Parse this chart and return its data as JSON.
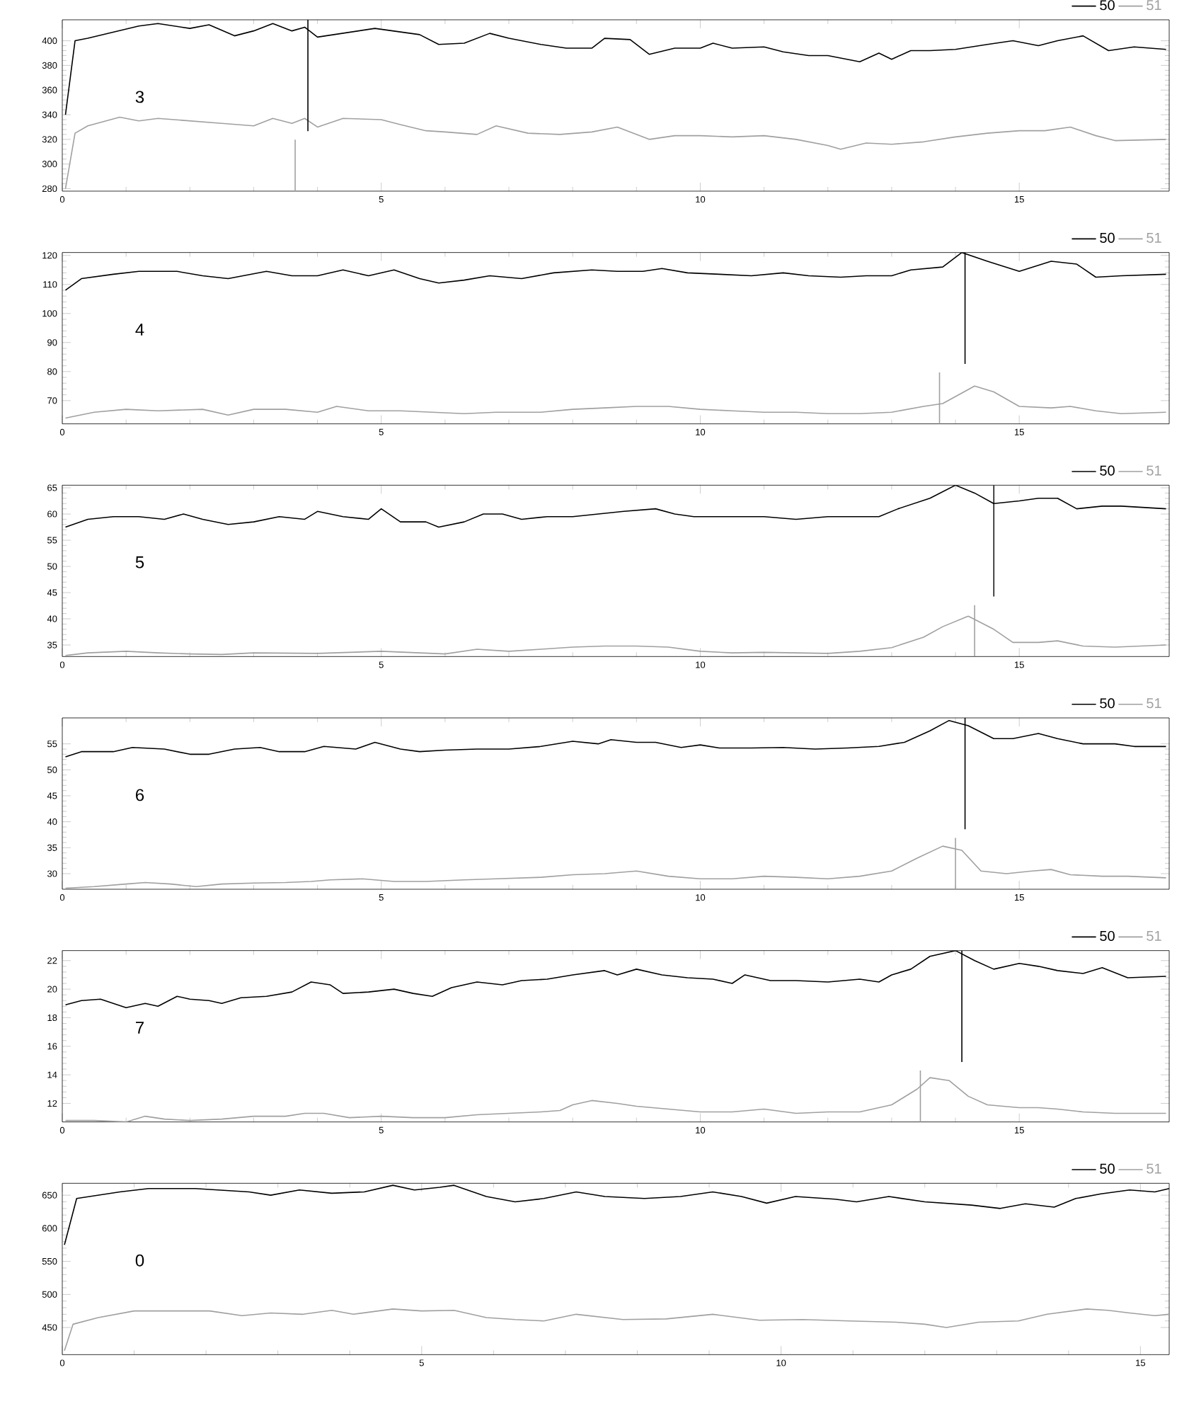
{
  "chart_data": [
    {
      "type": "line",
      "xlim": [
        0,
        17.35
      ],
      "xticks": [
        0,
        5,
        10,
        15
      ],
      "ylim": [
        278,
        417
      ],
      "yticks": [
        280,
        300,
        320,
        340,
        360,
        380,
        400
      ],
      "legend": "top right",
      "annotations": [
        "3"
      ],
      "ref_lines": [
        {
          "axis": "x",
          "value": 3.85,
          "color": "#000000"
        },
        {
          "axis": "x",
          "value": 3.65,
          "color": "#a0a0a0"
        }
      ],
      "series": [
        {
          "name": "50",
          "color": "#000000",
          "x": [
            0.05,
            0.2,
            0.4,
            0.9,
            1.2,
            1.5,
            2.0,
            2.3,
            2.7,
            3.0,
            3.3,
            3.6,
            3.8,
            4.0,
            4.4,
            4.9,
            5.3,
            5.6,
            5.9,
            6.3,
            6.7,
            7.0,
            7.5,
            7.9,
            8.3,
            8.5,
            8.9,
            9.2,
            9.6,
            10.0,
            10.2,
            10.5,
            11.0,
            11.3,
            11.7,
            12.0,
            12.5,
            12.8,
            13.0,
            13.3,
            13.6,
            14.0,
            14.5,
            14.9,
            15.3,
            15.6,
            16.0,
            16.4,
            16.8,
            17.3
          ],
          "values": [
            340,
            400,
            402,
            null,
            412,
            414,
            410,
            413,
            404,
            408,
            414,
            408,
            411,
            403,
            null,
            410,
            null,
            405,
            397,
            398,
            406,
            402,
            397,
            394,
            394,
            402,
            401,
            389,
            394,
            394,
            398,
            394,
            395,
            391,
            388,
            388,
            383,
            390,
            385,
            392,
            392,
            393,
            397,
            400,
            396,
            400,
            404,
            392,
            395,
            393
          ]
        },
        {
          "name": "51",
          "color": "#a0a0a0",
          "x": [
            0.05,
            0.2,
            0.4,
            0.9,
            1.2,
            1.5,
            2.0,
            2.5,
            3.0,
            3.3,
            3.6,
            3.8,
            4.0,
            4.4,
            5.0,
            5.3,
            5.7,
            6.0,
            6.5,
            6.8,
            7.3,
            7.8,
            8.3,
            8.7,
            9.2,
            9.6,
            10.0,
            10.5,
            11.0,
            11.5,
            12.0,
            12.2,
            12.6,
            13.0,
            13.5,
            14.0,
            14.5,
            15.0,
            15.4,
            15.8,
            16.2,
            16.5,
            17.3
          ],
          "values": [
            280,
            325,
            331,
            338,
            335,
            337,
            335,
            333,
            331,
            337,
            333,
            337,
            330,
            337,
            336,
            332,
            327,
            326,
            324,
            331,
            325,
            324,
            326,
            330,
            320,
            323,
            323,
            322,
            323,
            320,
            315,
            312,
            317,
            316,
            318,
            322,
            325,
            327,
            327,
            330,
            323,
            319,
            320
          ]
        }
      ]
    },
    {
      "type": "line",
      "xlim": [
        0,
        17.35
      ],
      "xticks": [
        0,
        5,
        10,
        15
      ],
      "ylim": [
        62,
        121
      ],
      "yticks": [
        70,
        80,
        90,
        100,
        110,
        120
      ],
      "legend": "top right",
      "annotations": [
        "4"
      ],
      "ref_lines": [
        {
          "axis": "x",
          "value": 14.15,
          "color": "#000000"
        },
        {
          "axis": "x",
          "value": 13.75,
          "color": "#a0a0a0"
        }
      ],
      "series": [
        {
          "name": "50",
          "color": "#000000",
          "x": [
            0.05,
            0.3,
            0.8,
            1.2,
            1.8,
            2.2,
            2.6,
            3.2,
            3.6,
            4.0,
            4.4,
            4.8,
            5.2,
            5.6,
            5.9,
            6.3,
            6.7,
            7.2,
            7.7,
            8.3,
            8.7,
            9.1,
            9.4,
            9.8,
            10.3,
            10.8,
            11.3,
            11.7,
            12.2,
            12.6,
            13.0,
            13.3,
            13.8,
            14.1,
            14.5,
            15.0,
            15.5,
            15.9,
            16.2,
            16.6,
            17.3
          ],
          "values": [
            108,
            112,
            113.5,
            114.5,
            114.5,
            113,
            112,
            114.5,
            113,
            113,
            115,
            113,
            115,
            112,
            110.5,
            111.5,
            113,
            112,
            114,
            115,
            114.5,
            114.5,
            115.5,
            114,
            113.5,
            113,
            114,
            113,
            112.5,
            113,
            113,
            115,
            116,
            121,
            118,
            114.5,
            118,
            117,
            112.5,
            113,
            113.5
          ]
        },
        {
          "name": "51",
          "color": "#a0a0a0",
          "x": [
            0.05,
            0.5,
            1.0,
            1.5,
            2.2,
            2.6,
            3.0,
            3.5,
            4.0,
            4.3,
            4.8,
            5.3,
            5.8,
            6.3,
            6.8,
            7.5,
            8.0,
            8.5,
            9.0,
            9.5,
            10.0,
            10.5,
            11.0,
            11.5,
            12.0,
            12.5,
            13.0,
            13.5,
            13.8,
            14.3,
            14.6,
            15.0,
            15.5,
            15.8,
            16.2,
            16.6,
            17.3
          ],
          "values": [
            64,
            66,
            67,
            66.5,
            67,
            65,
            67,
            67,
            66,
            68,
            66.5,
            66.5,
            66,
            65.5,
            66,
            66,
            67,
            67.5,
            68,
            68,
            67,
            66.5,
            66,
            66,
            65.5,
            65.5,
            66,
            68,
            69,
            75,
            73,
            68,
            67.5,
            68,
            66.5,
            65.5,
            66
          ]
        }
      ]
    },
    {
      "type": "line",
      "xlim": [
        0,
        17.35
      ],
      "xticks": [
        0,
        5,
        10,
        15
      ],
      "ylim": [
        32.8,
        65.5
      ],
      "yticks": [
        35,
        40,
        45,
        50,
        55,
        60,
        65
      ],
      "legend": "top right",
      "annotations": [
        "5"
      ],
      "ref_lines": [
        {
          "axis": "x",
          "value": 14.6,
          "color": "#000000"
        },
        {
          "axis": "x",
          "value": 14.3,
          "color": "#a0a0a0"
        }
      ],
      "series": [
        {
          "name": "50",
          "color": "#000000",
          "x": [
            0.05,
            0.4,
            0.8,
            1.2,
            1.6,
            1.9,
            2.2,
            2.6,
            3.0,
            3.4,
            3.8,
            4.0,
            4.4,
            4.8,
            5.0,
            5.3,
            5.7,
            5.9,
            6.3,
            6.6,
            6.9,
            7.2,
            7.6,
            8.0,
            8.4,
            8.8,
            9.3,
            9.6,
            9.9,
            10.2,
            10.6,
            11.0,
            11.5,
            12.0,
            12.4,
            12.8,
            13.1,
            13.6,
            14.0,
            14.3,
            14.6,
            15.0,
            15.3,
            15.6,
            15.9,
            16.3,
            16.6,
            17.3
          ],
          "values": [
            57.5,
            59,
            59.5,
            59.5,
            59,
            60,
            59,
            58,
            58.5,
            59.5,
            59,
            60.5,
            59.5,
            59,
            61,
            58.5,
            58.5,
            57.5,
            58.5,
            60,
            60,
            59,
            59.5,
            59.5,
            60,
            60.5,
            61,
            60,
            59.5,
            59.5,
            59.5,
            59.5,
            59,
            59.5,
            59.5,
            59.5,
            61,
            63,
            65.5,
            64,
            62,
            62.5,
            63,
            63,
            61,
            61.5,
            61.5,
            61
          ]
        },
        {
          "name": "51",
          "color": "#a0a0a0",
          "x": [
            0.05,
            0.4,
            1.0,
            1.5,
            2.0,
            2.5,
            3.0,
            4.0,
            5.0,
            6.0,
            6.5,
            7.0,
            7.5,
            8.0,
            8.5,
            9.0,
            9.5,
            10.0,
            10.5,
            11.0,
            11.5,
            12.0,
            12.5,
            13.0,
            13.5,
            13.8,
            14.2,
            14.6,
            14.9,
            15.3,
            15.6,
            16.0,
            16.5,
            17.3
          ],
          "values": [
            33,
            33.5,
            33.8,
            33.5,
            33.3,
            33.2,
            33.5,
            33.4,
            33.8,
            33.3,
            34.2,
            33.8,
            34.2,
            34.6,
            34.8,
            34.8,
            34.6,
            33.8,
            33.5,
            33.6,
            33.5,
            33.4,
            33.8,
            34.5,
            36.5,
            38.5,
            40.5,
            38,
            35.5,
            35.5,
            35.8,
            34.8,
            34.6,
            35
          ]
        }
      ]
    },
    {
      "type": "line",
      "xlim": [
        0,
        17.35
      ],
      "xticks": [
        0,
        5,
        10,
        15
      ],
      "ylim": [
        27,
        60
      ],
      "yticks": [
        30,
        35,
        40,
        45,
        50,
        55
      ],
      "legend": "top right",
      "annotations": [
        "6"
      ],
      "ref_lines": [
        {
          "axis": "x",
          "value": 14.15,
          "color": "#000000"
        },
        {
          "axis": "x",
          "value": 14.0,
          "color": "#a0a0a0"
        }
      ],
      "series": [
        {
          "name": "50",
          "color": "#000000",
          "x": [
            0.05,
            0.3,
            0.8,
            1.1,
            1.6,
            2.0,
            2.3,
            2.7,
            3.1,
            3.4,
            3.8,
            4.1,
            4.6,
            4.9,
            5.3,
            5.6,
            6.0,
            6.5,
            7.0,
            7.5,
            8.0,
            8.4,
            8.6,
            9.0,
            9.3,
            9.7,
            10.0,
            10.3,
            10.8,
            11.3,
            11.8,
            12.3,
            12.8,
            13.2,
            13.6,
            13.9,
            14.2,
            14.6,
            14.9,
            15.3,
            15.6,
            16.0,
            16.5,
            16.8,
            17.3
          ],
          "values": [
            52.5,
            53.5,
            53.5,
            54.3,
            54,
            53,
            53,
            54,
            54.3,
            53.5,
            53.5,
            54.5,
            54,
            55.3,
            54,
            53.5,
            53.8,
            54,
            54,
            54.5,
            55.5,
            55,
            55.8,
            55.3,
            55.3,
            54.3,
            54.8,
            54.2,
            54.2,
            54.3,
            54,
            54.2,
            54.5,
            55.3,
            57.5,
            59.5,
            58.5,
            56,
            56,
            57,
            56,
            55,
            55,
            54.5,
            54.5
          ]
        },
        {
          "name": "51",
          "color": "#a0a0a0",
          "x": [
            0.05,
            0.5,
            1.0,
            1.3,
            1.7,
            2.1,
            2.5,
            3.0,
            3.5,
            3.9,
            4.2,
            4.7,
            5.2,
            5.7,
            6.3,
            6.8,
            7.5,
            8.0,
            8.5,
            9.0,
            9.5,
            10.0,
            10.5,
            11.0,
            11.5,
            12.0,
            12.5,
            13.0,
            13.4,
            13.8,
            14.1,
            14.4,
            14.8,
            15.2,
            15.5,
            15.8,
            16.3,
            16.7,
            17.3
          ],
          "values": [
            27.2,
            27.5,
            28,
            28.3,
            28,
            27.5,
            28,
            28.2,
            28.3,
            28.5,
            28.8,
            29,
            28.5,
            28.5,
            28.8,
            29,
            29.3,
            29.8,
            30,
            30.5,
            29.5,
            29,
            29,
            29.5,
            29.3,
            29,
            29.5,
            30.5,
            33,
            35.3,
            34.5,
            30.5,
            30,
            30.5,
            30.8,
            29.8,
            29.5,
            29.5,
            29.2
          ]
        }
      ]
    },
    {
      "type": "line",
      "xlim": [
        0,
        17.35
      ],
      "xticks": [
        0,
        5,
        10,
        15
      ],
      "ylim": [
        10.7,
        22.7
      ],
      "yticks": [
        12,
        14,
        16,
        18,
        20,
        22
      ],
      "legend": "top right",
      "annotations": [
        "7"
      ],
      "ref_lines": [
        {
          "axis": "x",
          "value": 14.1,
          "color": "#000000"
        },
        {
          "axis": "x",
          "value": 13.45,
          "color": "#a0a0a0"
        }
      ],
      "series": [
        {
          "name": "50",
          "color": "#000000",
          "x": [
            0.05,
            0.3,
            0.6,
            1.0,
            1.3,
            1.5,
            1.8,
            2.0,
            2.3,
            2.5,
            2.8,
            3.2,
            3.6,
            3.9,
            4.2,
            4.4,
            4.8,
            5.2,
            5.5,
            5.8,
            6.1,
            6.5,
            6.9,
            7.2,
            7.6,
            8.0,
            8.5,
            8.7,
            9.0,
            9.4,
            9.8,
            10.2,
            10.5,
            10.7,
            11.1,
            11.5,
            12.0,
            12.5,
            12.8,
            13.0,
            13.3,
            13.6,
            14.0,
            14.3,
            14.6,
            15.0,
            15.3,
            15.6,
            16.0,
            16.3,
            16.7,
            17.3
          ],
          "values": [
            18.9,
            19.2,
            19.3,
            18.7,
            19.0,
            18.8,
            19.5,
            19.3,
            19.2,
            19.0,
            19.4,
            19.5,
            19.8,
            20.5,
            20.3,
            19.7,
            19.8,
            20.0,
            19.7,
            19.5,
            20.1,
            20.5,
            20.3,
            20.6,
            20.7,
            21.0,
            21.3,
            21.0,
            21.4,
            21.0,
            20.8,
            20.7,
            20.4,
            21.0,
            20.6,
            20.6,
            20.5,
            20.7,
            20.5,
            21.0,
            21.4,
            22.3,
            22.7,
            22.0,
            21.4,
            21.8,
            21.6,
            21.3,
            21.1,
            21.5,
            20.8,
            20.9
          ]
        },
        {
          "name": "51",
          "color": "#a0a0a0",
          "x": [
            0.05,
            0.5,
            1.0,
            1.3,
            1.6,
            2.0,
            2.5,
            3.0,
            3.5,
            3.8,
            4.1,
            4.5,
            5.0,
            5.5,
            6.0,
            6.5,
            7.0,
            7.5,
            7.8,
            8.0,
            8.3,
            8.7,
            9.0,
            9.5,
            10.0,
            10.5,
            11.0,
            11.5,
            12.0,
            12.5,
            13.0,
            13.4,
            13.6,
            13.9,
            14.2,
            14.5,
            15.0,
            15.3,
            15.6,
            16.0,
            16.5,
            17.3
          ],
          "values": [
            10.8,
            10.8,
            10.7,
            11.1,
            10.9,
            10.8,
            10.9,
            11.1,
            11.1,
            11.3,
            11.3,
            11.0,
            11.1,
            11.0,
            11.0,
            11.2,
            11.3,
            11.4,
            11.5,
            11.9,
            12.2,
            12.0,
            11.8,
            11.6,
            11.4,
            11.4,
            11.6,
            11.3,
            11.4,
            11.4,
            11.9,
            13.0,
            13.8,
            13.6,
            12.5,
            11.9,
            11.7,
            11.7,
            11.6,
            11.4,
            11.3,
            11.3
          ]
        }
      ]
    },
    {
      "type": "line",
      "xlim": [
        0,
        15.4
      ],
      "xticks": [
        0,
        5,
        10,
        15
      ],
      "ylim": [
        409,
        668
      ],
      "yticks": [
        450,
        500,
        550,
        600,
        650
      ],
      "legend": "top right",
      "annotations": [
        "0"
      ],
      "series": [
        {
          "name": "50",
          "color": "#000000",
          "x": [
            0.03,
            0.2,
            0.8,
            1.2,
            1.85,
            2.6,
            2.9,
            3.3,
            3.75,
            4.2,
            4.6,
            4.9,
            5.25,
            5.45,
            5.9,
            6.3,
            6.7,
            7.15,
            7.55,
            8.1,
            8.6,
            9.05,
            9.45,
            9.8,
            10.2,
            10.75,
            11.05,
            11.5,
            12.0,
            12.65,
            13.05,
            13.4,
            13.8,
            14.1,
            14.45,
            14.85,
            15.2,
            15.4
          ],
          "values": [
            575,
            645,
            655,
            660,
            660,
            655,
            650,
            658,
            653,
            655,
            665,
            658,
            662,
            665,
            648,
            640,
            645,
            655,
            648,
            645,
            648,
            655,
            648,
            638,
            648,
            644,
            640,
            648,
            640,
            635,
            630,
            637,
            632,
            645,
            652,
            658,
            655,
            660
          ]
        },
        {
          "name": "51",
          "color": "#a0a0a0",
          "x": [
            0.03,
            0.15,
            0.5,
            1.0,
            1.45,
            2.05,
            2.5,
            2.9,
            3.35,
            3.75,
            4.05,
            4.6,
            5.0,
            5.45,
            5.9,
            6.3,
            6.7,
            7.15,
            7.8,
            8.4,
            9.05,
            9.7,
            10.3,
            10.95,
            11.6,
            12.0,
            12.3,
            12.75,
            13.3,
            13.7,
            14.25,
            14.55,
            14.85,
            15.2,
            15.4
          ],
          "values": [
            415,
            455,
            465,
            475,
            475,
            475,
            468,
            472,
            470,
            476,
            470,
            478,
            475,
            476,
            465,
            462,
            460,
            470,
            462,
            463,
            470,
            461,
            462,
            460,
            458,
            455,
            450,
            458,
            460,
            470,
            478,
            476,
            472,
            468,
            470
          ]
        }
      ]
    }
  ]
}
